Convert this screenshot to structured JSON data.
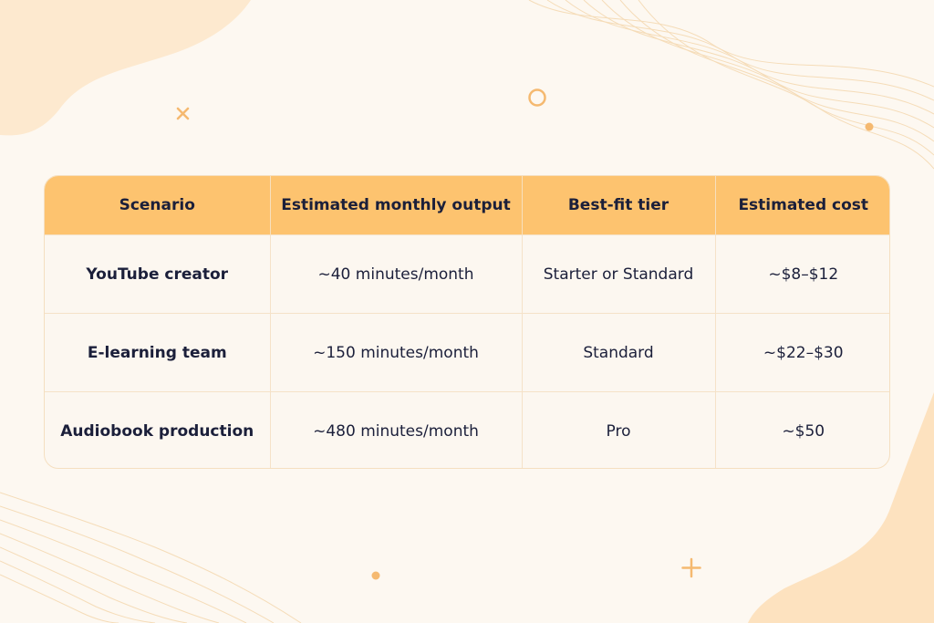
{
  "colors": {
    "background": "#fdf8f1",
    "header_fill": "#fdc36f",
    "text": "#1b1f3a",
    "accent": "#f5b970"
  },
  "decorations": [
    "blob-top-left",
    "wave-lines-top-right",
    "circle-outline",
    "cross-mark",
    "dot",
    "plus-mark",
    "wave-lines-bottom-left",
    "blob-bottom-right"
  ],
  "table": {
    "headers": [
      "Scenario",
      "Estimated monthly output",
      "Best-fit tier",
      "Estimated cost"
    ],
    "rows": [
      [
        "YouTube creator",
        "~40 minutes/month",
        "Starter or Standard",
        "~$8–$12"
      ],
      [
        "E-learning team",
        "~150 minutes/month",
        "Standard",
        "~$22–$30"
      ],
      [
        "Audiobook production",
        "~480 minutes/month",
        "Pro",
        "~$50"
      ]
    ]
  }
}
